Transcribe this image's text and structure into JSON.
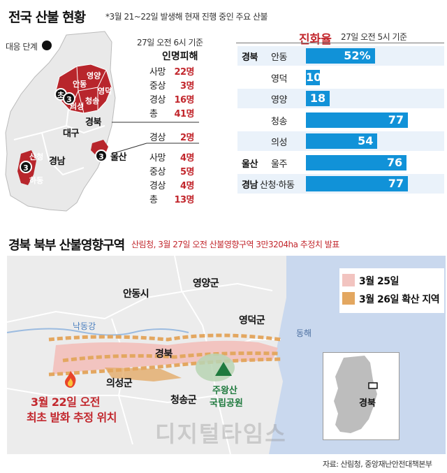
{
  "header": {
    "title": "전국 산불 현황",
    "subtitle": "*3월 21~22일 발생해 현재 진행 중인 주요 산불"
  },
  "national_map": {
    "response_level_label": "대응 단계",
    "badge_value": "3",
    "badge_stage_letter": "초",
    "labels": {
      "gyeongbuk": "경북",
      "daegu": "대구",
      "gyeongnam": "경남",
      "ulsan": "울산",
      "sancheong": "산청",
      "hadong": "하동",
      "andong": "안동",
      "yeongyang": "영양",
      "yeongdeok": "영덕",
      "cheongsong": "청송",
      "uiseong": "의성"
    }
  },
  "casualties": {
    "timestamp": "27일 오전 6시 기준",
    "heading": "인명피해",
    "gyeongbuk": [
      {
        "label": "사망",
        "value": "22명"
      },
      {
        "label": "중상",
        "value": "3명"
      },
      {
        "label": "경상",
        "value": "16명"
      },
      {
        "label": "총",
        "value": "41명"
      }
    ],
    "ulsan": [
      {
        "label": "경상",
        "value": "2명"
      }
    ],
    "gyeongnam": [
      {
        "label": "사망",
        "value": "4명"
      },
      {
        "label": "중상",
        "value": "5명"
      },
      {
        "label": "경상",
        "value": "4명"
      },
      {
        "label": "총",
        "value": "13명"
      }
    ]
  },
  "containment": {
    "heading": "진화율",
    "timestamp": "27일 오전 5시 기준",
    "colors": {
      "bar": "#1192d8",
      "row_bg": "#eaf2fa"
    },
    "rows": [
      {
        "region": "경북",
        "area": "안동",
        "value": 52,
        "label": "52%"
      },
      {
        "region": "",
        "area": "영덕",
        "value": 10,
        "label": "10"
      },
      {
        "region": "",
        "area": "영양",
        "value": 18,
        "label": "18"
      },
      {
        "region": "",
        "area": "청송",
        "value": 77,
        "label": "77"
      },
      {
        "region": "",
        "area": "의성",
        "value": 54,
        "label": "54"
      },
      {
        "region": "울산",
        "area": "울주",
        "value": 76,
        "label": "76"
      },
      {
        "region": "경남",
        "area": "산청·하동",
        "value": 77,
        "label": "77"
      }
    ]
  },
  "section2": {
    "title": "경북 북부 산불영향구역",
    "subtitle": "산림청, 3월 27일 오전 산불영향구역 3만3204ha 추정치 발표"
  },
  "impact_map": {
    "legend": [
      {
        "label": "3월 25일",
        "color": "#f2c4c0"
      },
      {
        "label": "3월 26일 확산 지역",
        "color": "#e3a760"
      }
    ],
    "places": {
      "yeongyang": "영양군",
      "andong": "안동시",
      "yeongdeok": "영덕군",
      "river": "낙동강",
      "sea": "동해",
      "gyeongbuk": "경북",
      "uiseong": "의성군",
      "cheongsong": "청송군",
      "park_line1": "주왕산",
      "park_line2": "국립공원",
      "origin_line1": "3월 22일 오전",
      "origin_line2": "최초 발화 추정 위치"
    },
    "inset_label": "경북",
    "watermark": "디지털타임스"
  },
  "footer": {
    "source": "자료: 산림청, 중앙재난안전대책본부"
  }
}
